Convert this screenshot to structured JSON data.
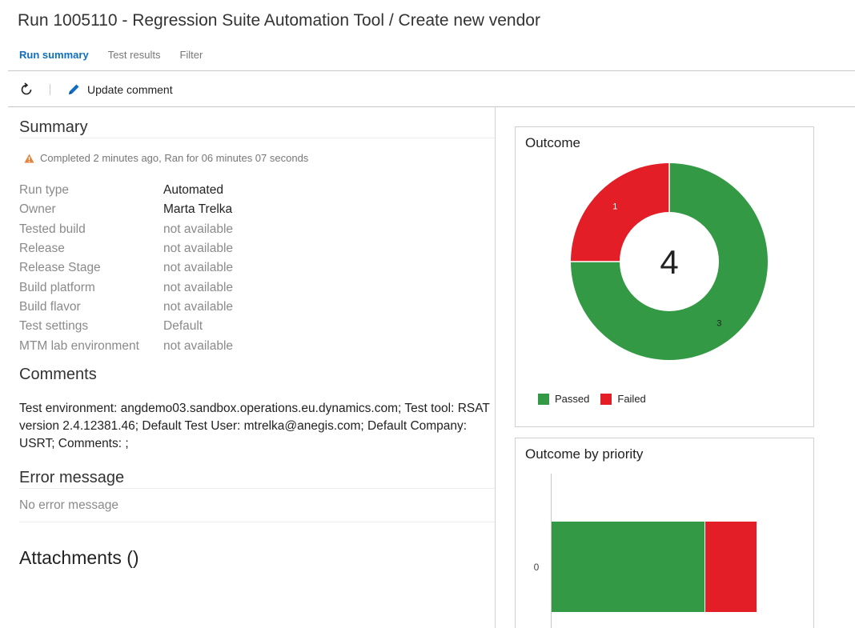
{
  "header": {
    "title": "Run 1005110 - Regression Suite Automation Tool / Create new vendor"
  },
  "tabs": [
    {
      "label": "Run summary",
      "active": true
    },
    {
      "label": "Test results",
      "active": false
    },
    {
      "label": "Filter",
      "active": false
    }
  ],
  "toolbar": {
    "refresh_icon": "refresh-icon",
    "update_comment_label": "Update comment",
    "update_comment_icon": "pencil-icon"
  },
  "summary": {
    "heading": "Summary",
    "status_icon": "warning-icon",
    "status_text": "Completed 2 minutes ago, Ran for 06 minutes 07 seconds",
    "properties": [
      {
        "key": "Run type",
        "value": "Automated"
      },
      {
        "key": "Owner",
        "value": "Marta Trelka"
      },
      {
        "key": "Tested build",
        "value": "not available"
      },
      {
        "key": "Release",
        "value": "not available"
      },
      {
        "key": "Release Stage",
        "value": "not available"
      },
      {
        "key": "Build platform",
        "value": "not available"
      },
      {
        "key": "Build flavor",
        "value": "not available"
      },
      {
        "key": "Test settings",
        "value": "Default"
      },
      {
        "key": "MTM lab environment",
        "value": "not available"
      }
    ]
  },
  "comments": {
    "heading": "Comments",
    "text": "Test environment: angdemo03.sandbox.operations.eu.dynamics.com; Test tool: RSAT version 2.4.12381.46; Default Test User: mtrelka@anegis.com; Default Company: USRT; Comments: ;"
  },
  "error": {
    "heading": "Error message",
    "text": "No error message"
  },
  "attachments": {
    "heading": "Attachments ()"
  },
  "colors": {
    "passed": "#339944",
    "failed": "#e31e26",
    "accent": "#106ebe"
  },
  "chart_data": [
    {
      "type": "pie",
      "title": "Outcome",
      "total_label": "4",
      "categories": [
        "Passed",
        "Failed"
      ],
      "values": [
        3,
        1
      ],
      "legend_position": "bottom-left"
    },
    {
      "type": "bar",
      "title": "Outcome by priority",
      "orientation": "horizontal",
      "stacked": true,
      "categories": [
        "0"
      ],
      "series": [
        {
          "name": "Passed",
          "values": [
            3
          ]
        },
        {
          "name": "Failed",
          "values": [
            1
          ]
        }
      ]
    }
  ]
}
